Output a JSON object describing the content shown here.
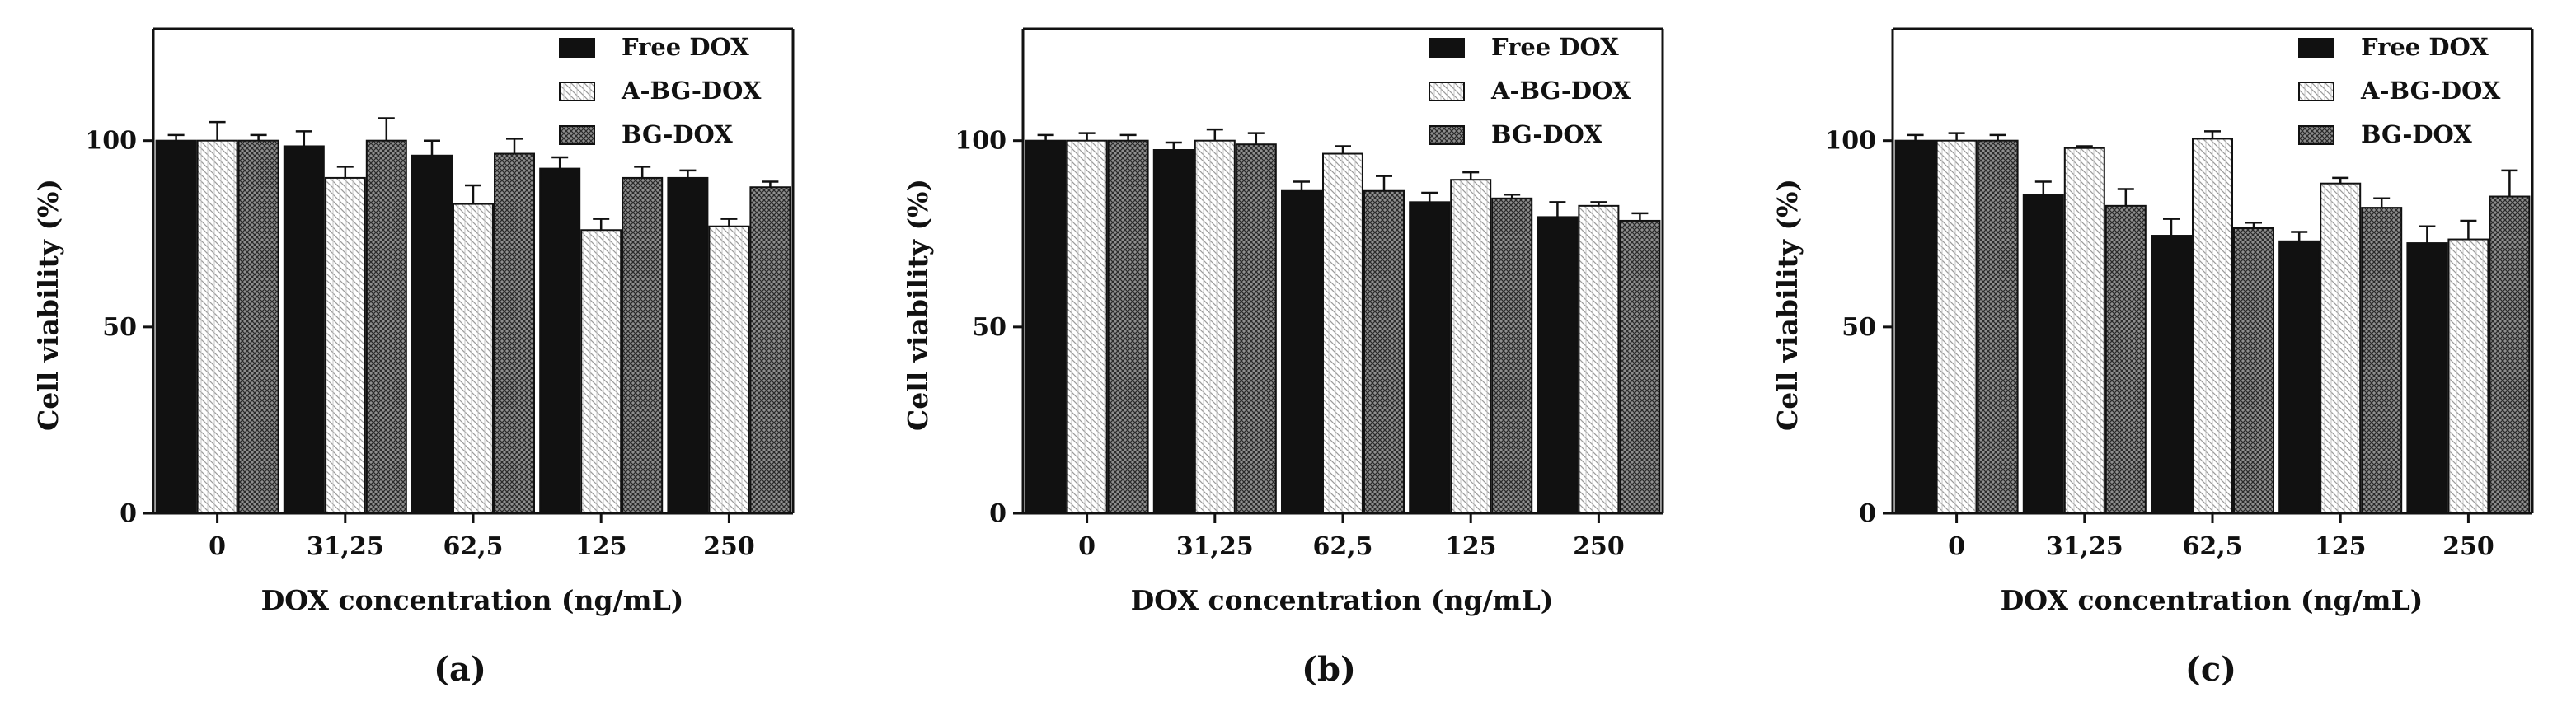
{
  "colors": {
    "free_dox": "#111111",
    "a_bg_dox_bg": "#ffffff",
    "a_bg_dox_line": "#9a9a9a",
    "bg_dox_bg": "#8f8f8f",
    "bg_dox_line": "#2a2a2a",
    "axis": "#111111"
  },
  "chart_data": [
    {
      "type": "bar",
      "panel_label": "(a)",
      "xlabel": "DOX concentration (ng/mL)",
      "ylabel": "Cell viability (%)",
      "ylim": [
        0,
        130
      ],
      "yticks": [
        "0",
        "50",
        "100"
      ],
      "categories": [
        "0",
        "31,25",
        "62,5",
        "125",
        "250"
      ],
      "legend_position": "top-right",
      "series": [
        {
          "name": "Free DOX",
          "values": [
            100,
            98.5,
            96,
            92.5,
            90
          ],
          "errors": [
            1.5,
            4,
            4,
            3,
            2
          ]
        },
        {
          "name": "A-BG-DOX",
          "values": [
            100,
            90,
            83,
            76,
            77
          ],
          "errors": [
            5,
            3,
            5,
            3,
            2
          ]
        },
        {
          "name": "BG-DOX",
          "values": [
            100,
            100,
            96.5,
            90,
            87.5
          ],
          "errors": [
            1.5,
            6,
            4,
            3,
            1.5
          ]
        }
      ]
    },
    {
      "type": "bar",
      "panel_label": "(b)",
      "xlabel": "DOX concentration (ng/mL)",
      "ylabel": "Cell viability (%)",
      "ylim": [
        0,
        130
      ],
      "yticks": [
        "0",
        "50",
        "100"
      ],
      "categories": [
        "0",
        "31,25",
        "62,5",
        "125",
        "250"
      ],
      "legend_position": "top-right",
      "series": [
        {
          "name": "Free DOX",
          "values": [
            100,
            97.5,
            86.5,
            83.5,
            79.5
          ],
          "errors": [
            1.5,
            2,
            2.5,
            2.5,
            4
          ]
        },
        {
          "name": "A-BG-DOX",
          "values": [
            100,
            100,
            96.5,
            89.5,
            82.5
          ],
          "errors": [
            2,
            3,
            2,
            2,
            1
          ]
        },
        {
          "name": "BG-DOX",
          "values": [
            100,
            99,
            86.5,
            84.5,
            78.5
          ],
          "errors": [
            1.5,
            3,
            4,
            1,
            2
          ]
        }
      ]
    },
    {
      "type": "bar",
      "panel_label": "(c)",
      "xlabel": "DOX concentration (ng/mL)",
      "ylabel": "Cell viability (%)",
      "ylim": [
        0,
        130
      ],
      "yticks": [
        "0",
        "50",
        "100"
      ],
      "categories": [
        "0",
        "31,25",
        "62,5",
        "125",
        "250"
      ],
      "legend_position": "top-right",
      "series": [
        {
          "name": "Free DOX",
          "values": [
            100,
            85.5,
            74.5,
            73,
            72.5
          ],
          "errors": [
            1.5,
            3.5,
            4.5,
            2.5,
            4.5
          ]
        },
        {
          "name": "A-BG-DOX",
          "values": [
            100,
            98,
            100.5,
            88.5,
            73.5
          ],
          "errors": [
            2,
            0.5,
            2,
            1.5,
            5
          ]
        },
        {
          "name": "BG-DOX",
          "values": [
            100,
            82.5,
            76.5,
            82,
            85
          ],
          "errors": [
            1.5,
            4.5,
            1.5,
            2.5,
            7
          ]
        }
      ]
    }
  ]
}
